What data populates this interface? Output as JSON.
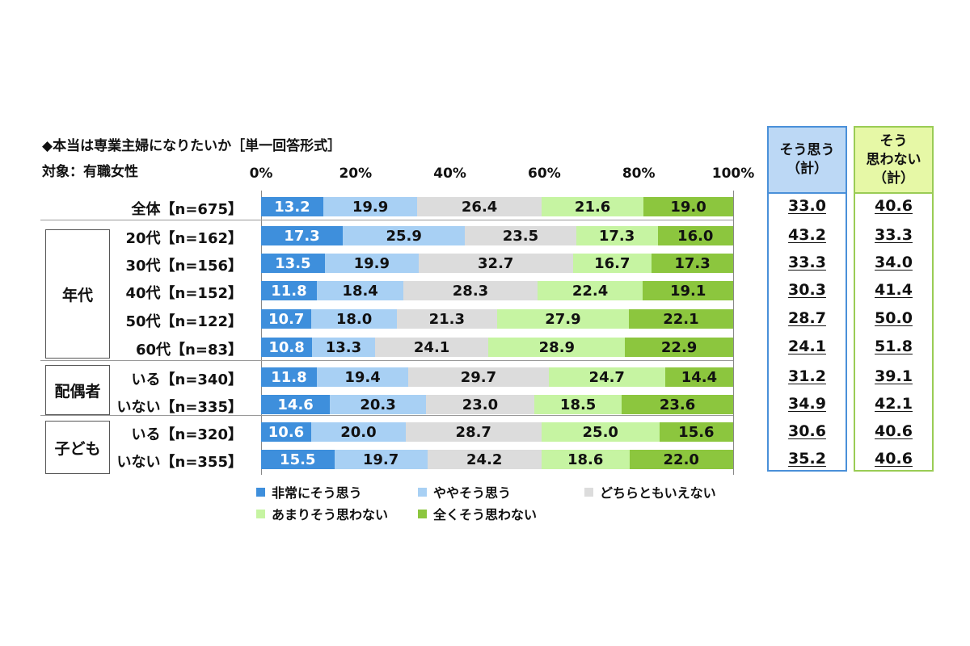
{
  "chart_data": {
    "type": "bar",
    "orientation": "horizontal-stacked-100",
    "title": "◆本当は専業主婦になりたいか［単一回答形式］",
    "subtitle": "対象：有職女性",
    "xlim": [
      0,
      100
    ],
    "ticks": [
      "0%",
      "20%",
      "40%",
      "60%",
      "80%",
      "100%"
    ],
    "series": [
      {
        "name": "非常にそう思う",
        "color": "#3e8fdc"
      },
      {
        "name": "ややそう思う",
        "color": "#a8d0f4"
      },
      {
        "name": "どちらともいえない",
        "color": "#dcdcdc"
      },
      {
        "name": "あまりそう思わない",
        "color": "#c6f4a2"
      },
      {
        "name": "全くそう思わない",
        "color": "#8cc63e"
      }
    ],
    "groups": [
      {
        "name": "",
        "rows": [
          0
        ]
      },
      {
        "name": "年代",
        "rows": [
          1,
          2,
          3,
          4,
          5
        ]
      },
      {
        "name": "配偶者",
        "rows": [
          6,
          7
        ]
      },
      {
        "name": "子ども",
        "rows": [
          8,
          9
        ]
      }
    ],
    "rows": [
      {
        "label": "全体【n=675】",
        "values": [
          "13.2",
          "19.9",
          "26.4",
          "21.6",
          "19.0"
        ],
        "agree": "33.0",
        "disagree": "40.6"
      },
      {
        "label": "20代【n=162】",
        "values": [
          "17.3",
          "25.9",
          "23.5",
          "17.3",
          "16.0"
        ],
        "agree": "43.2",
        "disagree": "33.3"
      },
      {
        "label": "30代【n=156】",
        "values": [
          "13.5",
          "19.9",
          "32.7",
          "16.7",
          "17.3"
        ],
        "agree": "33.3",
        "disagree": "34.0"
      },
      {
        "label": "40代【n=152】",
        "values": [
          "11.8",
          "18.4",
          "28.3",
          "22.4",
          "19.1"
        ],
        "agree": "30.3",
        "disagree": "41.4"
      },
      {
        "label": "50代【n=122】",
        "values": [
          "10.7",
          "18.0",
          "21.3",
          "27.9",
          "22.1"
        ],
        "agree": "28.7",
        "disagree": "50.0"
      },
      {
        "label": "60代【n=83】",
        "values": [
          "10.8",
          "13.3",
          "24.1",
          "28.9",
          "22.9"
        ],
        "agree": "24.1",
        "disagree": "51.8"
      },
      {
        "label": "いる【n=340】",
        "values": [
          "11.8",
          "19.4",
          "29.7",
          "24.7",
          "14.4"
        ],
        "agree": "31.2",
        "disagree": "39.1"
      },
      {
        "label": "いない【n=335】",
        "values": [
          "14.6",
          "20.3",
          "23.0",
          "18.5",
          "23.6"
        ],
        "agree": "34.9",
        "disagree": "42.1"
      },
      {
        "label": "いる【n=320】",
        "values": [
          "10.6",
          "20.0",
          "28.7",
          "25.0",
          "15.6"
        ],
        "agree": "30.6",
        "disagree": "40.6"
      },
      {
        "label": "いない【n=355】",
        "values": [
          "15.5",
          "19.7",
          "24.2",
          "18.6",
          "22.0"
        ],
        "agree": "35.2",
        "disagree": "40.6"
      }
    ],
    "summary_columns": [
      {
        "label_lines": [
          "そう思う",
          "（計）"
        ],
        "border": "#4a90d9",
        "fill": "#bcd8f5"
      },
      {
        "label_lines": [
          "そう",
          "思わない",
          "（計）"
        ],
        "border": "#9acc55",
        "fill": "#e6f8a6"
      }
    ],
    "legend_position": "bottom"
  }
}
